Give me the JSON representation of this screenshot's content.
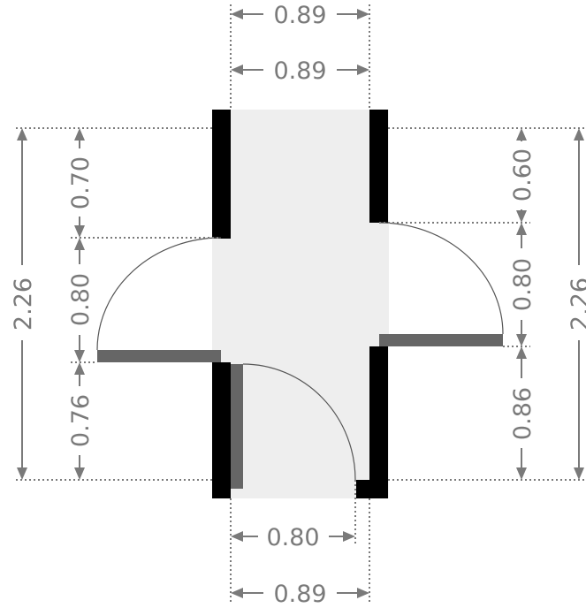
{
  "dimensions": {
    "top_outer": "0.89",
    "top_inner": "0.89",
    "bottom_inner": "0.80",
    "bottom_outer": "0.89",
    "left_total": "2.26",
    "left_top": "0.70",
    "left_mid": "0.80",
    "left_bottom": "0.76",
    "right_total": "2.26",
    "right_top": "0.60",
    "right_mid": "0.80",
    "right_bottom": "0.86"
  },
  "colors": {
    "wall": "#000000",
    "door_leaf": "#666666",
    "floor": "#eeeeee",
    "dimension": "#7a7a7a"
  }
}
